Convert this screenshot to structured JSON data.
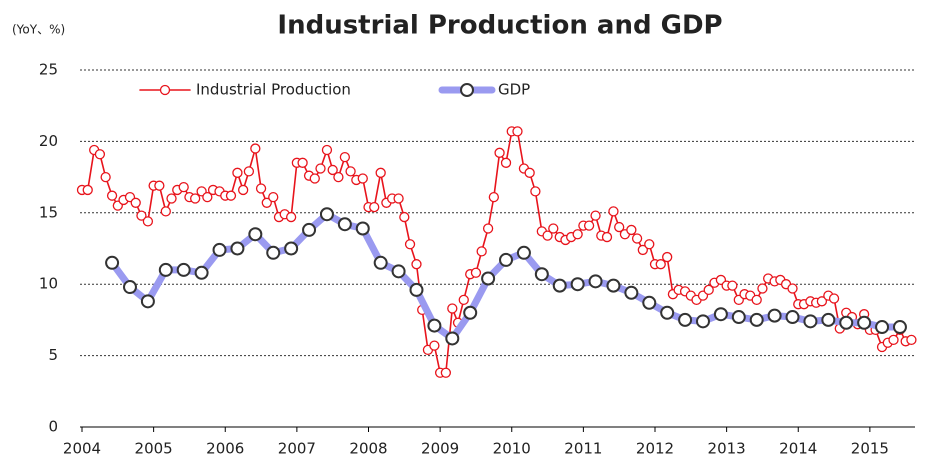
{
  "chart_data": {
    "type": "line",
    "title": "Industrial Production and GDP",
    "y_label": "(YoY、%)",
    "xlim": [
      2004,
      2015.63
    ],
    "xticks": [
      2004,
      2005,
      2006,
      2007,
      2008,
      2009,
      2010,
      2011,
      2012,
      2013,
      2014,
      2015
    ],
    "ylim": [
      0,
      25
    ],
    "yticks": [
      0,
      5,
      10,
      15,
      20,
      25
    ],
    "grid": true,
    "legend": "top-left",
    "series": [
      {
        "name": "Industrial Production",
        "color": "#e8141c",
        "style": "thin",
        "x": [
          2004.0,
          2004.08,
          2004.17,
          2004.25,
          2004.33,
          2004.42,
          2004.5,
          2004.58,
          2004.67,
          2004.75,
          2004.83,
          2004.92,
          2005.0,
          2005.08,
          2005.17,
          2005.25,
          2005.33,
          2005.42,
          2005.5,
          2005.58,
          2005.67,
          2005.75,
          2005.83,
          2005.92,
          2006.0,
          2006.08,
          2006.17,
          2006.25,
          2006.33,
          2006.42,
          2006.5,
          2006.58,
          2006.67,
          2006.75,
          2006.83,
          2006.92,
          2007.0,
          2007.08,
          2007.17,
          2007.25,
          2007.33,
          2007.42,
          2007.5,
          2007.58,
          2007.67,
          2007.75,
          2007.83,
          2007.92,
          2008.0,
          2008.08,
          2008.17,
          2008.25,
          2008.33,
          2008.42,
          2008.5,
          2008.58,
          2008.67,
          2008.75,
          2008.83,
          2008.92,
          2009.0,
          2009.08,
          2009.17,
          2009.25,
          2009.33,
          2009.42,
          2009.5,
          2009.58,
          2009.67,
          2009.75,
          2009.83,
          2009.92,
          2010.0,
          2010.08,
          2010.17,
          2010.25,
          2010.33,
          2010.42,
          2010.5,
          2010.58,
          2010.67,
          2010.75,
          2010.83,
          2010.92,
          2011.0,
          2011.08,
          2011.17,
          2011.25,
          2011.33,
          2011.42,
          2011.5,
          2011.58,
          2011.67,
          2011.75,
          2011.83,
          2011.92,
          2012.0,
          2012.08,
          2012.17,
          2012.25,
          2012.33,
          2012.42,
          2012.5,
          2012.58,
          2012.67,
          2012.75,
          2012.83,
          2012.92,
          2013.0,
          2013.08,
          2013.17,
          2013.25,
          2013.33,
          2013.42,
          2013.5,
          2013.58,
          2013.67,
          2013.75,
          2013.83,
          2013.92,
          2014.0,
          2014.08,
          2014.17,
          2014.25,
          2014.33,
          2014.42,
          2014.5,
          2014.58,
          2014.67,
          2014.75,
          2014.83,
          2014.92,
          2015.0,
          2015.08,
          2015.17,
          2015.25,
          2015.33,
          2015.42,
          2015.5,
          2015.58
        ],
        "values": [
          16.6,
          16.6,
          19.4,
          19.1,
          17.5,
          16.2,
          15.5,
          15.9,
          16.1,
          15.7,
          14.8,
          14.4,
          16.9,
          16.9,
          15.1,
          16.0,
          16.6,
          16.8,
          16.1,
          16.0,
          16.5,
          16.1,
          16.6,
          16.5,
          16.2,
          16.2,
          17.8,
          16.6,
          17.9,
          19.5,
          16.7,
          15.7,
          16.1,
          14.7,
          14.9,
          14.7,
          18.5,
          18.5,
          17.6,
          17.4,
          18.1,
          19.4,
          18.0,
          17.5,
          18.9,
          17.9,
          17.3,
          17.4,
          15.4,
          15.4,
          17.8,
          15.7,
          16.0,
          16.0,
          14.7,
          12.8,
          11.4,
          8.2,
          5.4,
          5.7,
          3.8,
          3.8,
          8.3,
          7.3,
          8.9,
          10.7,
          10.8,
          12.3,
          13.9,
          16.1,
          19.2,
          18.5,
          20.7,
          20.7,
          18.1,
          17.8,
          16.5,
          13.7,
          13.4,
          13.9,
          13.3,
          13.1,
          13.3,
          13.5,
          14.1,
          14.1,
          14.8,
          13.4,
          13.3,
          15.1,
          14.0,
          13.5,
          13.8,
          13.2,
          12.4,
          12.8,
          11.4,
          11.4,
          11.9,
          9.3,
          9.6,
          9.5,
          9.2,
          8.9,
          9.2,
          9.6,
          10.1,
          10.3,
          9.9,
          9.9,
          8.9,
          9.3,
          9.2,
          8.9,
          9.7,
          10.4,
          10.2,
          10.3,
          10.0,
          9.7,
          8.6,
          8.6,
          8.8,
          8.7,
          8.8,
          9.2,
          9.0,
          6.9,
          8.0,
          7.7,
          7.2,
          7.9,
          6.8,
          6.8,
          5.6,
          5.9,
          6.1,
          6.8,
          6.0,
          6.1
        ]
      },
      {
        "name": "GDP",
        "color": "#9a9af0",
        "style": "thick",
        "x": [
          2004.42,
          2004.67,
          2004.92,
          2005.17,
          2005.42,
          2005.67,
          2005.92,
          2006.17,
          2006.42,
          2006.67,
          2006.92,
          2007.17,
          2007.42,
          2007.67,
          2007.92,
          2008.17,
          2008.42,
          2008.67,
          2008.92,
          2009.17,
          2009.42,
          2009.67,
          2009.92,
          2010.17,
          2010.42,
          2010.67,
          2010.92,
          2011.17,
          2011.42,
          2011.67,
          2011.92,
          2012.17,
          2012.42,
          2012.67,
          2012.92,
          2013.17,
          2013.42,
          2013.67,
          2013.92,
          2014.17,
          2014.42,
          2014.67,
          2014.92,
          2015.17,
          2015.42
        ],
        "values": [
          11.5,
          9.8,
          8.8,
          11.0,
          11.0,
          10.8,
          12.4,
          12.5,
          13.5,
          12.2,
          12.5,
          13.8,
          14.9,
          14.2,
          13.9,
          11.5,
          10.9,
          9.6,
          7.1,
          6.2,
          8.0,
          10.4,
          11.7,
          12.2,
          10.7,
          9.9,
          10.0,
          10.2,
          9.9,
          9.4,
          8.7,
          8.0,
          7.5,
          7.4,
          7.9,
          7.7,
          7.5,
          7.8,
          7.7,
          7.4,
          7.5,
          7.3,
          7.3,
          7.0,
          7.0
        ]
      }
    ]
  }
}
